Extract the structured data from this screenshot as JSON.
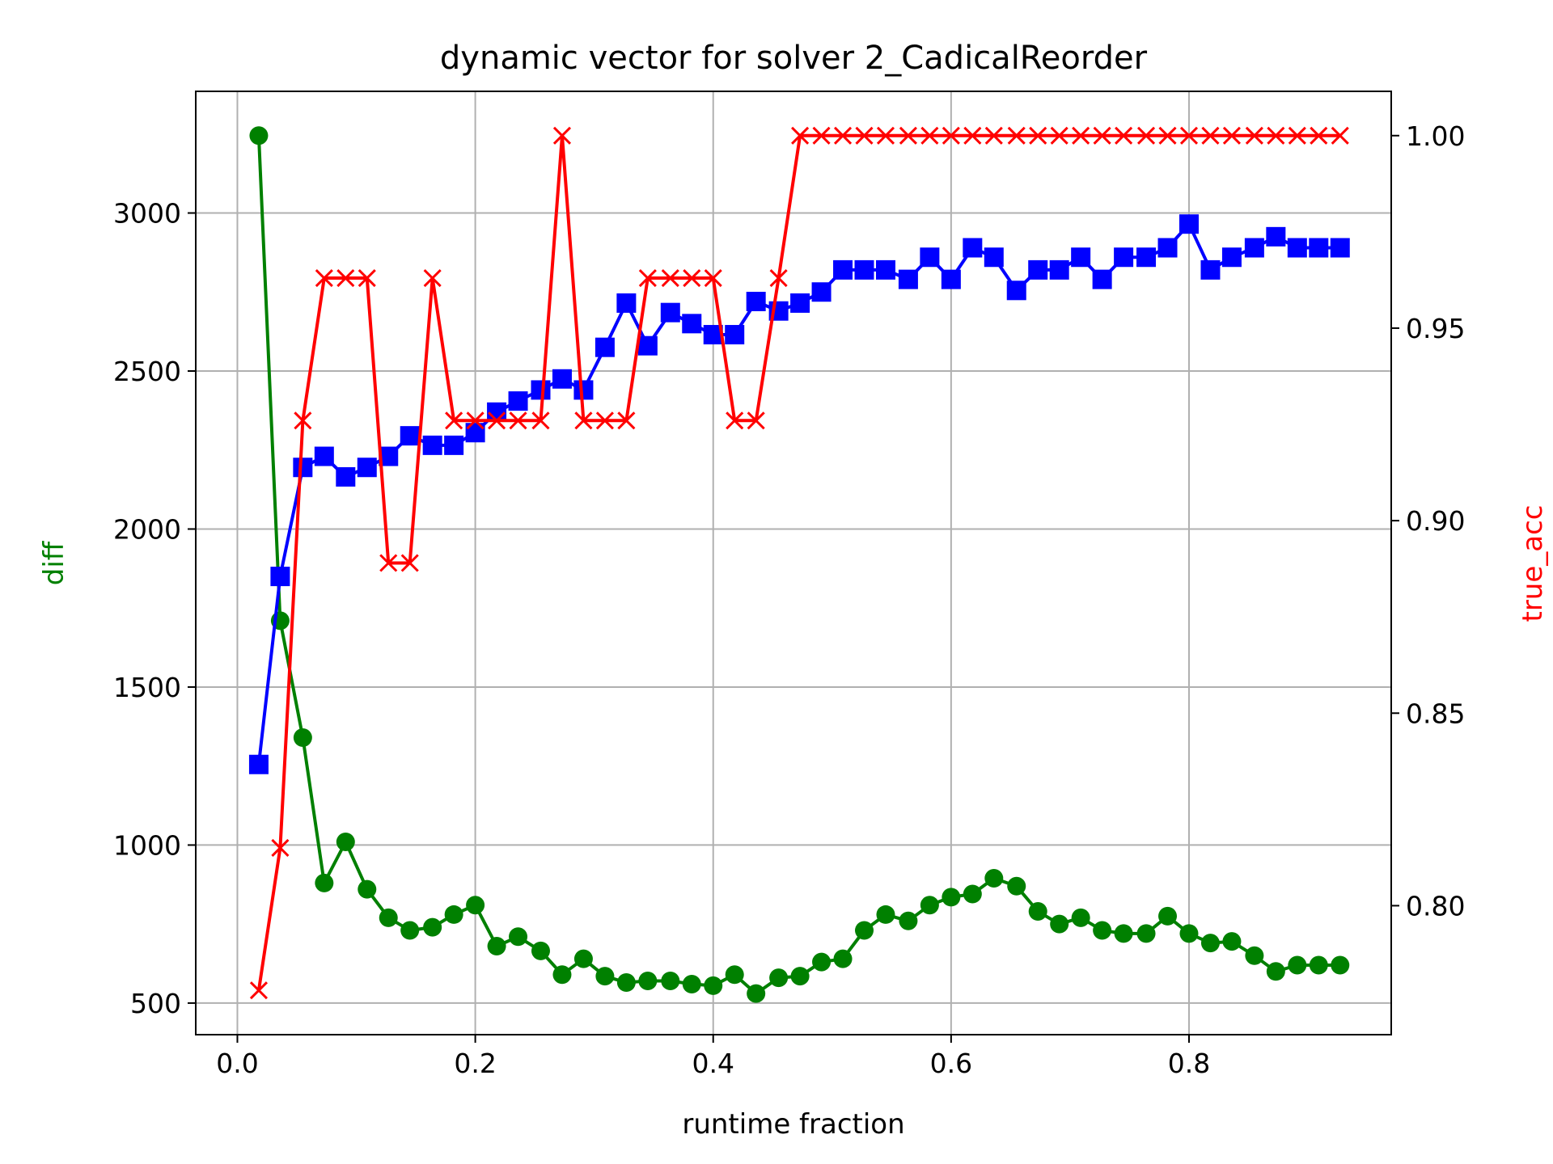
{
  "chart_data": {
    "type": "line",
    "title": "dynamic vector for solver 2_CadicalReorder",
    "xlabel": "runtime fraction",
    "ylabel_left": "diff",
    "ylabel_right": "true_acc",
    "grid": true,
    "xlim": [
      -0.035,
      0.97
    ],
    "ylim_left": [
      400,
      3385
    ],
    "ylim_right": [
      0.7665,
      1.0115
    ],
    "x_ticks": [
      "0.0",
      "0.2",
      "0.4",
      "0.6",
      "0.8"
    ],
    "x_tick_values": [
      0.0,
      0.2,
      0.4,
      0.6,
      0.8
    ],
    "y_left_ticks": [
      "500",
      "1000",
      "1500",
      "2000",
      "2500",
      "3000"
    ],
    "y_left_tick_values": [
      500,
      1000,
      1500,
      2000,
      2500,
      3000
    ],
    "y_right_ticks": [
      "0.80",
      "0.85",
      "0.90",
      "0.95",
      "1.00"
    ],
    "y_right_tick_values": [
      0.8,
      0.85,
      0.9,
      0.95,
      1.0
    ],
    "colors": {
      "green_series": "#008000",
      "blue_series": "#0000ff",
      "red_series": "#ff0000",
      "left_axis_label": "#008000",
      "right_axis_label": "#ff0000"
    },
    "series": [
      {
        "axis": "left",
        "color": "#008000",
        "marker": "circle",
        "x": [
          0.018,
          0.036,
          0.055,
          0.073,
          0.091,
          0.109,
          0.127,
          0.145,
          0.164,
          0.182,
          0.2,
          0.218,
          0.236,
          0.255,
          0.273,
          0.291,
          0.309,
          0.327,
          0.345,
          0.364,
          0.382,
          0.4,
          0.418,
          0.436,
          0.455,
          0.473,
          0.491,
          0.509,
          0.527,
          0.545,
          0.564,
          0.582,
          0.6,
          0.618,
          0.636,
          0.655,
          0.673,
          0.691,
          0.709,
          0.727,
          0.745,
          0.764,
          0.782,
          0.8,
          0.818,
          0.836,
          0.855,
          0.873,
          0.891,
          0.909,
          0.927
        ],
        "values": [
          3245,
          1710,
          1340,
          880,
          1010,
          860,
          770,
          730,
          740,
          780,
          810,
          680,
          710,
          665,
          590,
          640,
          585,
          565,
          570,
          570,
          560,
          555,
          590,
          530,
          580,
          585,
          630,
          640,
          730,
          780,
          760,
          810,
          835,
          845,
          895,
          870,
          790,
          750,
          770,
          730,
          720,
          720,
          775,
          720,
          690,
          695,
          650,
          600,
          620,
          620,
          620
        ]
      },
      {
        "axis": "left",
        "color": "#0000ff",
        "marker": "square",
        "x": [
          0.018,
          0.036,
          0.055,
          0.073,
          0.091,
          0.109,
          0.127,
          0.145,
          0.164,
          0.182,
          0.2,
          0.218,
          0.236,
          0.255,
          0.273,
          0.291,
          0.309,
          0.327,
          0.345,
          0.364,
          0.382,
          0.4,
          0.418,
          0.436,
          0.455,
          0.473,
          0.491,
          0.509,
          0.527,
          0.545,
          0.564,
          0.582,
          0.6,
          0.618,
          0.636,
          0.655,
          0.673,
          0.691,
          0.709,
          0.727,
          0.745,
          0.764,
          0.782,
          0.8,
          0.818,
          0.836,
          0.855,
          0.873,
          0.891,
          0.909,
          0.927
        ],
        "values": [
          1255,
          1850,
          2195,
          2230,
          2165,
          2195,
          2230,
          2295,
          2265,
          2265,
          2305,
          2370,
          2405,
          2440,
          2475,
          2440,
          2575,
          2715,
          2580,
          2685,
          2650,
          2615,
          2615,
          2720,
          2690,
          2715,
          2750,
          2820,
          2820,
          2820,
          2790,
          2860,
          2790,
          2890,
          2860,
          2755,
          2820,
          2820,
          2860,
          2790,
          2860,
          2860,
          2890,
          2965,
          2820,
          2860,
          2890,
          2925,
          2890,
          2890,
          2890
        ]
      },
      {
        "axis": "right",
        "color": "#ff0000",
        "marker": "x",
        "x": [
          0.018,
          0.036,
          0.055,
          0.073,
          0.091,
          0.109,
          0.127,
          0.145,
          0.164,
          0.182,
          0.2,
          0.218,
          0.236,
          0.255,
          0.273,
          0.291,
          0.309,
          0.327,
          0.345,
          0.364,
          0.382,
          0.4,
          0.418,
          0.436,
          0.455,
          0.473,
          0.491,
          0.509,
          0.527,
          0.545,
          0.564,
          0.582,
          0.6,
          0.618,
          0.636,
          0.655,
          0.673,
          0.691,
          0.709,
          0.727,
          0.745,
          0.764,
          0.782,
          0.8,
          0.818,
          0.836,
          0.855,
          0.873,
          0.891,
          0.909,
          0.927
        ],
        "values": [
          0.778,
          0.815,
          0.926,
          0.963,
          0.963,
          0.963,
          0.889,
          0.889,
          0.963,
          0.926,
          0.926,
          0.926,
          0.926,
          0.926,
          1.0,
          0.926,
          0.926,
          0.926,
          0.963,
          0.963,
          0.963,
          0.963,
          0.926,
          0.926,
          0.963,
          1.0,
          1.0,
          1.0,
          1.0,
          1.0,
          1.0,
          1.0,
          1.0,
          1.0,
          1.0,
          1.0,
          1.0,
          1.0,
          1.0,
          1.0,
          1.0,
          1.0,
          1.0,
          1.0,
          1.0,
          1.0,
          1.0,
          1.0,
          1.0,
          1.0,
          1.0
        ]
      }
    ]
  }
}
